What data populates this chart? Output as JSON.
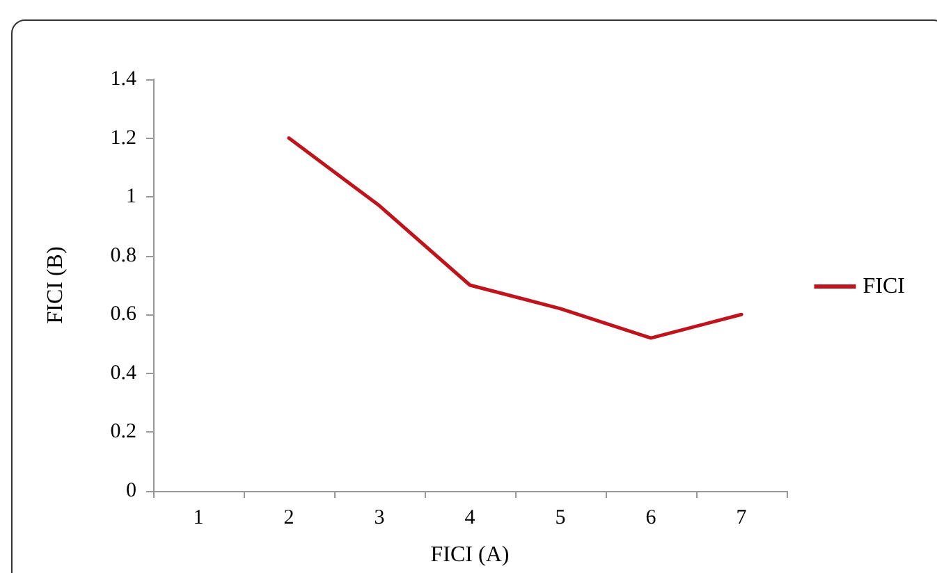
{
  "chart_data": {
    "type": "line",
    "xlabel": "FICI (A)",
    "ylabel": "FICI (B)",
    "categories": [
      "1",
      "2",
      "3",
      "4",
      "5",
      "6",
      "7"
    ],
    "series": [
      {
        "name": "FICI",
        "color": "#c0141c",
        "values": [
          null,
          1.2,
          0.97,
          0.7,
          0.62,
          0.52,
          0.6
        ]
      }
    ],
    "ylim": [
      0,
      1.4
    ],
    "yticks": [
      0,
      0.2,
      0.4,
      0.6,
      0.8,
      1,
      1.2,
      1.4
    ],
    "grid": false,
    "legend": "right",
    "marker": "none",
    "line_style": "solid"
  }
}
